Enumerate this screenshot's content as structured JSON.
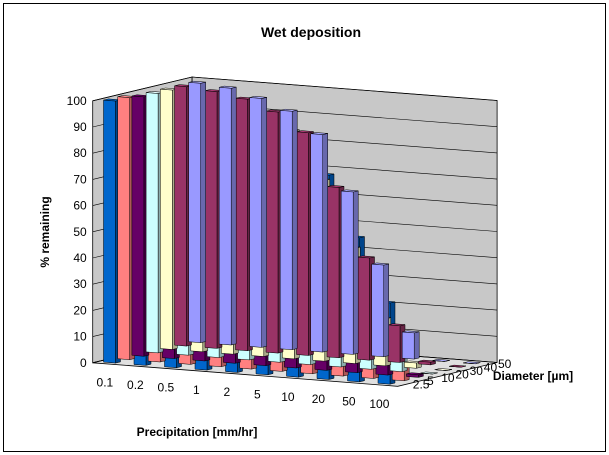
{
  "chart_data": {
    "type": "bar",
    "title": "Wet deposition",
    "xlabel": "Precipitation  [mm/hr]",
    "ylabel": "% remaining",
    "zlabel": "Diameter [µm]",
    "categories": [
      "0.1",
      "0.2",
      "0.5",
      "1",
      "2",
      "5",
      "10",
      "20",
      "50",
      "100"
    ],
    "y_ticks": [
      "0",
      "10",
      "20",
      "30",
      "40",
      "50",
      "60",
      "70",
      "80",
      "90",
      "100"
    ],
    "ylim": [
      0,
      100
    ],
    "grid": true,
    "series": [
      {
        "name": "50",
        "color": "#9999ff",
        "values": [
          99,
          98,
          95,
          91,
          83,
          62,
          35,
          10,
          0,
          0
        ]
      },
      {
        "name": "40",
        "color": "#993366",
        "values": [
          99,
          98,
          96,
          92,
          85,
          65,
          39,
          14,
          1,
          0
        ]
      },
      {
        "name": "30",
        "color": "#ffffcc",
        "values": [
          99,
          98,
          96,
          93,
          87,
          69,
          44,
          18,
          2,
          0
        ]
      },
      {
        "name": "20",
        "color": "#ccffff",
        "values": [
          99,
          98,
          97,
          94,
          89,
          74,
          51,
          26,
          5,
          0
        ]
      },
      {
        "name": "10",
        "color": "#660066",
        "values": [
          99,
          99,
          98,
          96,
          92,
          82,
          64,
          39,
          12,
          1
        ]
      },
      {
        "name": "5",
        "color": "#ff8080",
        "values": [
          100,
          99,
          99,
          98,
          96,
          90,
          79,
          60,
          31,
          6
        ]
      },
      {
        "name": "2.5",
        "color": "#0066cc",
        "values": [
          100,
          100,
          99,
          99,
          98,
          95,
          89,
          78,
          55,
          31
        ]
      }
    ]
  }
}
